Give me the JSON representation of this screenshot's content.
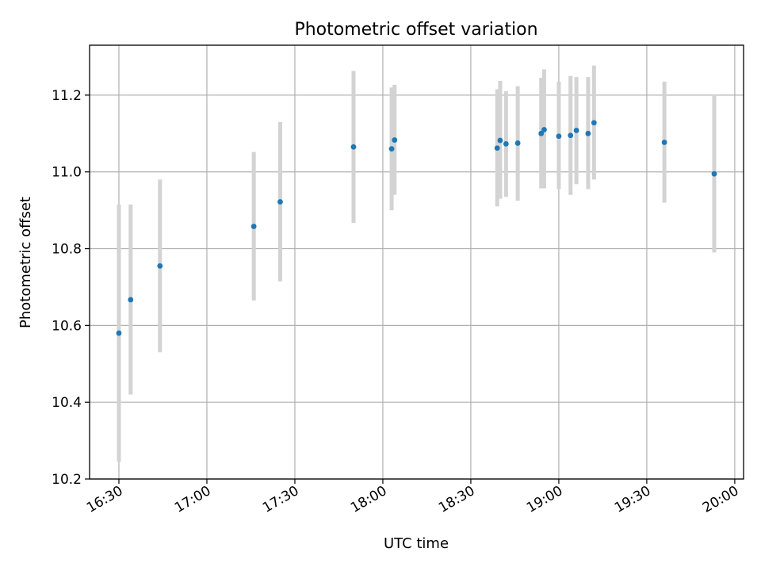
{
  "chart_data": {
    "type": "scatter",
    "title": "Photometric offset variation",
    "xlabel": "UTC time",
    "ylabel": "Photometric offset",
    "xlim": [
      "16:20",
      "20:03"
    ],
    "ylim": [
      10.2,
      11.33
    ],
    "x_ticks": [
      "16:30",
      "17:00",
      "17:30",
      "18:00",
      "18:30",
      "19:00",
      "19:30",
      "20:00"
    ],
    "y_ticks": [
      10.2,
      10.4,
      10.6,
      10.8,
      11.0,
      11.2
    ],
    "grid": true,
    "colors": {
      "marker": "#1f77b4",
      "errorbar": "#d3d3d3"
    },
    "points": [
      {
        "x": "16:30",
        "y": 10.58,
        "yerr_low": 10.245,
        "yerr_high": 10.915
      },
      {
        "x": "16:34",
        "y": 10.667,
        "yerr_low": 10.42,
        "yerr_high": 10.915
      },
      {
        "x": "16:44",
        "y": 10.755,
        "yerr_low": 10.53,
        "yerr_high": 10.98
      },
      {
        "x": "17:16",
        "y": 10.858,
        "yerr_low": 10.665,
        "yerr_high": 11.052
      },
      {
        "x": "17:25",
        "y": 10.922,
        "yerr_low": 10.715,
        "yerr_high": 11.13
      },
      {
        "x": "17:50",
        "y": 11.065,
        "yerr_low": 10.867,
        "yerr_high": 11.263
      },
      {
        "x": "18:03",
        "y": 11.06,
        "yerr_low": 10.9,
        "yerr_high": 11.22
      },
      {
        "x": "18:04",
        "y": 11.083,
        "yerr_low": 10.94,
        "yerr_high": 11.227
      },
      {
        "x": "18:39",
        "y": 11.062,
        "yerr_low": 10.91,
        "yerr_high": 11.215
      },
      {
        "x": "18:40",
        "y": 11.082,
        "yerr_low": 10.93,
        "yerr_high": 11.237
      },
      {
        "x": "18:42",
        "y": 11.073,
        "yerr_low": 10.935,
        "yerr_high": 11.21
      },
      {
        "x": "18:46",
        "y": 11.075,
        "yerr_low": 10.925,
        "yerr_high": 11.223
      },
      {
        "x": "18:54",
        "y": 11.1,
        "yerr_low": 10.957,
        "yerr_high": 11.245
      },
      {
        "x": "18:55",
        "y": 11.11,
        "yerr_low": 10.957,
        "yerr_high": 11.267
      },
      {
        "x": "19:00",
        "y": 11.093,
        "yerr_low": 10.955,
        "yerr_high": 11.235
      },
      {
        "x": "19:04",
        "y": 11.095,
        "yerr_low": 10.94,
        "yerr_high": 11.25
      },
      {
        "x": "19:06",
        "y": 11.108,
        "yerr_low": 10.968,
        "yerr_high": 11.247
      },
      {
        "x": "19:10",
        "y": 11.1,
        "yerr_low": 10.955,
        "yerr_high": 11.247
      },
      {
        "x": "19:12",
        "y": 11.128,
        "yerr_low": 10.98,
        "yerr_high": 11.277
      },
      {
        "x": "19:36",
        "y": 11.077,
        "yerr_low": 10.92,
        "yerr_high": 11.235
      },
      {
        "x": "19:53",
        "y": 10.995,
        "yerr_low": 10.79,
        "yerr_high": 11.2
      }
    ]
  }
}
